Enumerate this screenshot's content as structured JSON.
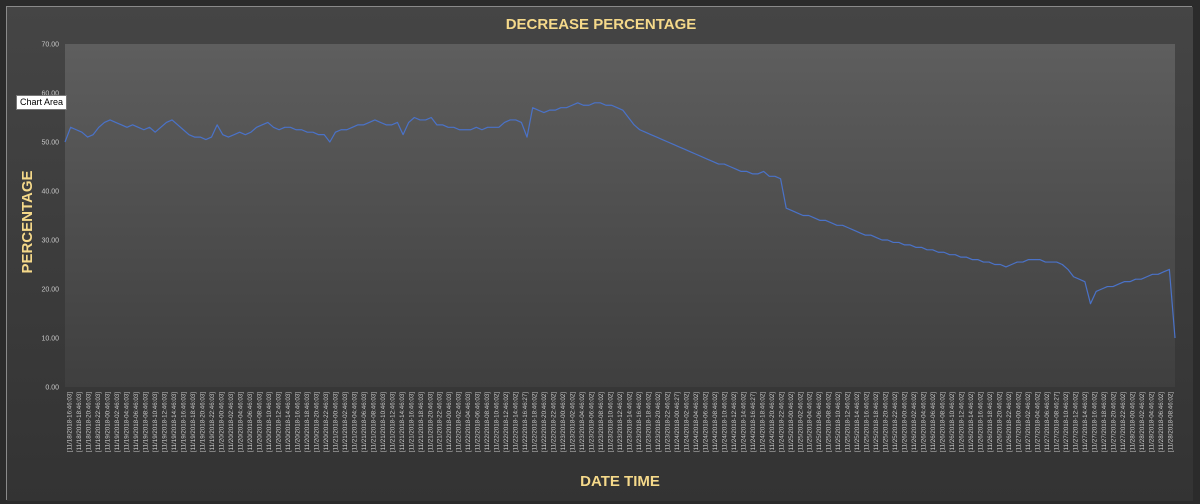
{
  "tooltip": {
    "label": "Chart Area"
  },
  "chart_data": {
    "type": "line",
    "title": "DECREASE PERCENTAGE",
    "xlabel": "DATE TIME",
    "ylabel": "PERCENTAGE",
    "ylim": [
      0,
      70
    ],
    "yticks": [
      "0.00",
      "10.00",
      "20.00",
      "30.00",
      "40.00",
      "50.00",
      "60.00",
      "70.00"
    ],
    "ytick_values": [
      0,
      10,
      20,
      30,
      40,
      50,
      60,
      70
    ],
    "grid": false,
    "legend": "none",
    "line_color": "#4a72c8",
    "x_tick_labels": [
      "[11/18/2018-16:46:03]",
      "[11/18/2018-18:46:03]",
      "[11/18/2018-20:46:03]",
      "[11/18/2018-22:46:03]",
      "[11/19/2018-00:46:03]",
      "[11/19/2018-02:46:03]",
      "[11/19/2018-04:46:03]",
      "[11/19/2018-06:46:03]",
      "[11/19/2018-08:46:03]",
      "[11/19/2018-10:46:03]",
      "[11/19/2018-12:46:03]",
      "[11/19/2018-14:46:03]",
      "[11/19/2018-16:46:03]",
      "[11/19/2018-18:46:03]",
      "[11/19/2018-20:46:03]",
      "[11/19/2018-22:46:03]",
      "[11/20/2018-00:46:03]",
      "[11/20/2018-02:46:03]",
      "[11/20/2018-04:46:03]",
      "[11/20/2018-06:46:03]",
      "[11/20/2018-08:46:03]",
      "[11/20/2018-10:46:03]",
      "[11/20/2018-12:46:03]",
      "[11/20/2018-14:46:03]",
      "[11/20/2018-16:46:03]",
      "[11/20/2018-18:46:03]",
      "[11/20/2018-20:46:03]",
      "[11/20/2018-22:46:03]",
      "[11/21/2018-00:46:03]",
      "[11/21/2018-02:46:03]",
      "[11/21/2018-04:46:03]",
      "[11/21/2018-06:46:03]",
      "[11/21/2018-08:46:03]",
      "[11/21/2018-10:46:03]",
      "[11/21/2018-12:46:03]",
      "[11/21/2018-14:46:03]",
      "[11/21/2018-16:46:03]",
      "[11/21/2018-18:46:03]",
      "[11/21/2018-20:46:03]",
      "[11/21/2018-22:46:03]",
      "[11/22/2018-00:46:03]",
      "[11/22/2018-02:46:03]",
      "[11/22/2018-04:46:03]",
      "[11/22/2018-06:46:03]",
      "[11/22/2018-08:46:03]",
      "[11/22/2018-10:46:02]",
      "[11/22/2018-12:46:02]",
      "[11/22/2018-14:46:02]",
      "[11/22/2018-16:46:27]",
      "[11/22/2018-18:46:02]",
      "[11/22/2018-20:46:02]",
      "[11/22/2018-22:46:02]",
      "[11/23/2018-00:46:02]",
      "[11/23/2018-02:46:02]",
      "[11/23/2018-04:46:02]",
      "[11/23/2018-06:46:02]",
      "[11/23/2018-08:46:02]",
      "[11/23/2018-10:46:02]",
      "[11/23/2018-12:46:02]",
      "[11/23/2018-14:46:02]",
      "[11/23/2018-16:46:02]",
      "[11/23/2018-18:46:02]",
      "[11/23/2018-20:46:02]",
      "[11/23/2018-22:46:02]",
      "[11/24/2018-00:46:27]",
      "[11/24/2018-02:46:02]",
      "[11/24/2018-04:46:02]",
      "[11/24/2018-06:46:02]",
      "[11/24/2018-08:46:02]",
      "[11/24/2018-10:46:02]",
      "[11/24/2018-12:46:02]",
      "[11/24/2018-14:46:02]",
      "[11/24/2018-16:46:27]",
      "[11/24/2018-18:46:02]",
      "[11/24/2018-20:46:02]",
      "[11/24/2018-22:46:02]",
      "[11/25/2018-00:46:02]",
      "[11/25/2018-02:46:02]",
      "[11/25/2018-04:46:02]",
      "[11/25/2018-06:46:02]",
      "[11/25/2018-08:46:02]",
      "[11/25/2018-10:46:02]",
      "[11/25/2018-12:46:02]",
      "[11/25/2018-14:46:02]",
      "[11/25/2018-16:46:02]",
      "[11/25/2018-18:46:02]",
      "[11/25/2018-20:46:02]",
      "[11/25/2018-22:46:02]",
      "[11/26/2018-00:46:02]",
      "[11/26/2018-02:46:02]",
      "[11/26/2018-04:46:02]",
      "[11/26/2018-06:46:02]",
      "[11/26/2018-08:46:02]",
      "[11/26/2018-10:46:02]",
      "[11/26/2018-12:46:02]",
      "[11/26/2018-14:46:02]",
      "[11/26/2018-16:46:02]",
      "[11/26/2018-18:46:02]",
      "[11/26/2018-20:46:02]",
      "[11/26/2018-22:46:02]",
      "[11/27/2018-00:46:02]",
      "[11/27/2018-02:46:02]",
      "[11/27/2018-04:46:02]",
      "[11/27/2018-06:46:02]",
      "[11/27/2018-08:46:27]",
      "[11/27/2018-10:46:02]",
      "[11/27/2018-12:46:02]",
      "[11/27/2018-14:46:02]",
      "[11/27/2018-16:46:02]",
      "[11/27/2018-18:46:02]",
      "[11/27/2018-20:46:02]",
      "[11/27/2018-22:46:02]",
      "[11/28/2018-00:46:02]",
      "[11/28/2018-02:46:02]",
      "[11/28/2018-04:46:02]",
      "[11/28/2018-06:46:02]",
      "[11/28/2018-08:46:02]"
    ],
    "series": [
      {
        "values": [
          50.0,
          53.0,
          52.5,
          52.0,
          51.0,
          51.5,
          53.0,
          54.0,
          54.5,
          54.0,
          53.5,
          53.0,
          53.5,
          53.0,
          52.5,
          53.0,
          52.0,
          53.0,
          54.0,
          54.5,
          53.5,
          52.5,
          51.5,
          51.0,
          51.0,
          50.5,
          51.0,
          53.5,
          51.5,
          51.0,
          51.5,
          52.0,
          51.5,
          52.0,
          53.0,
          53.5,
          54.0,
          53.0,
          52.5,
          53.0,
          53.0,
          52.5,
          52.5,
          52.0,
          52.0,
          51.5,
          51.5,
          50.0,
          52.0,
          52.5,
          52.5,
          53.0,
          53.5,
          53.5,
          54.0,
          54.5,
          54.0,
          53.5,
          53.5,
          54.0,
          51.5,
          54.0,
          55.0,
          54.5,
          54.5,
          55.0,
          53.5,
          53.5,
          53.0,
          53.0,
          52.5,
          52.5,
          52.5,
          53.0,
          52.5,
          53.0,
          53.0,
          53.0,
          54.0,
          54.5,
          54.5,
          54.0,
          51.0,
          57.0,
          56.5,
          56.0,
          56.5,
          56.5,
          57.0,
          57.0,
          57.5,
          58.0,
          57.5,
          57.5,
          58.0,
          58.0,
          57.5,
          57.5,
          57.0,
          56.5,
          55.0,
          53.5,
          52.5,
          52.0,
          51.5,
          51.0,
          50.5,
          50.0,
          49.5,
          49.0,
          48.5,
          48.0,
          47.5,
          47.0,
          46.5,
          46.0,
          45.5,
          45.5,
          45.0,
          44.5,
          44.0,
          44.0,
          43.5,
          43.5,
          44.0,
          43.0,
          43.0,
          42.5,
          36.5,
          36.0,
          35.5,
          35.0,
          35.0,
          34.5,
          34.0,
          34.0,
          33.5,
          33.0,
          33.0,
          32.5,
          32.0,
          31.5,
          31.0,
          31.0,
          30.5,
          30.0,
          30.0,
          29.5,
          29.5,
          29.0,
          29.0,
          28.5,
          28.5,
          28.0,
          28.0,
          27.5,
          27.5,
          27.0,
          27.0,
          26.5,
          26.5,
          26.0,
          26.0,
          25.5,
          25.5,
          25.0,
          25.0,
          24.5,
          25.0,
          25.5,
          25.5,
          26.0,
          26.0,
          26.0,
          25.5,
          25.5,
          25.5,
          25.0,
          24.0,
          22.5,
          22.0,
          21.5,
          17.0,
          19.5,
          20.0,
          20.5,
          20.5,
          21.0,
          21.5,
          21.5,
          22.0,
          22.0,
          22.5,
          23.0,
          23.0,
          23.5,
          24.0,
          10.0
        ]
      }
    ]
  }
}
